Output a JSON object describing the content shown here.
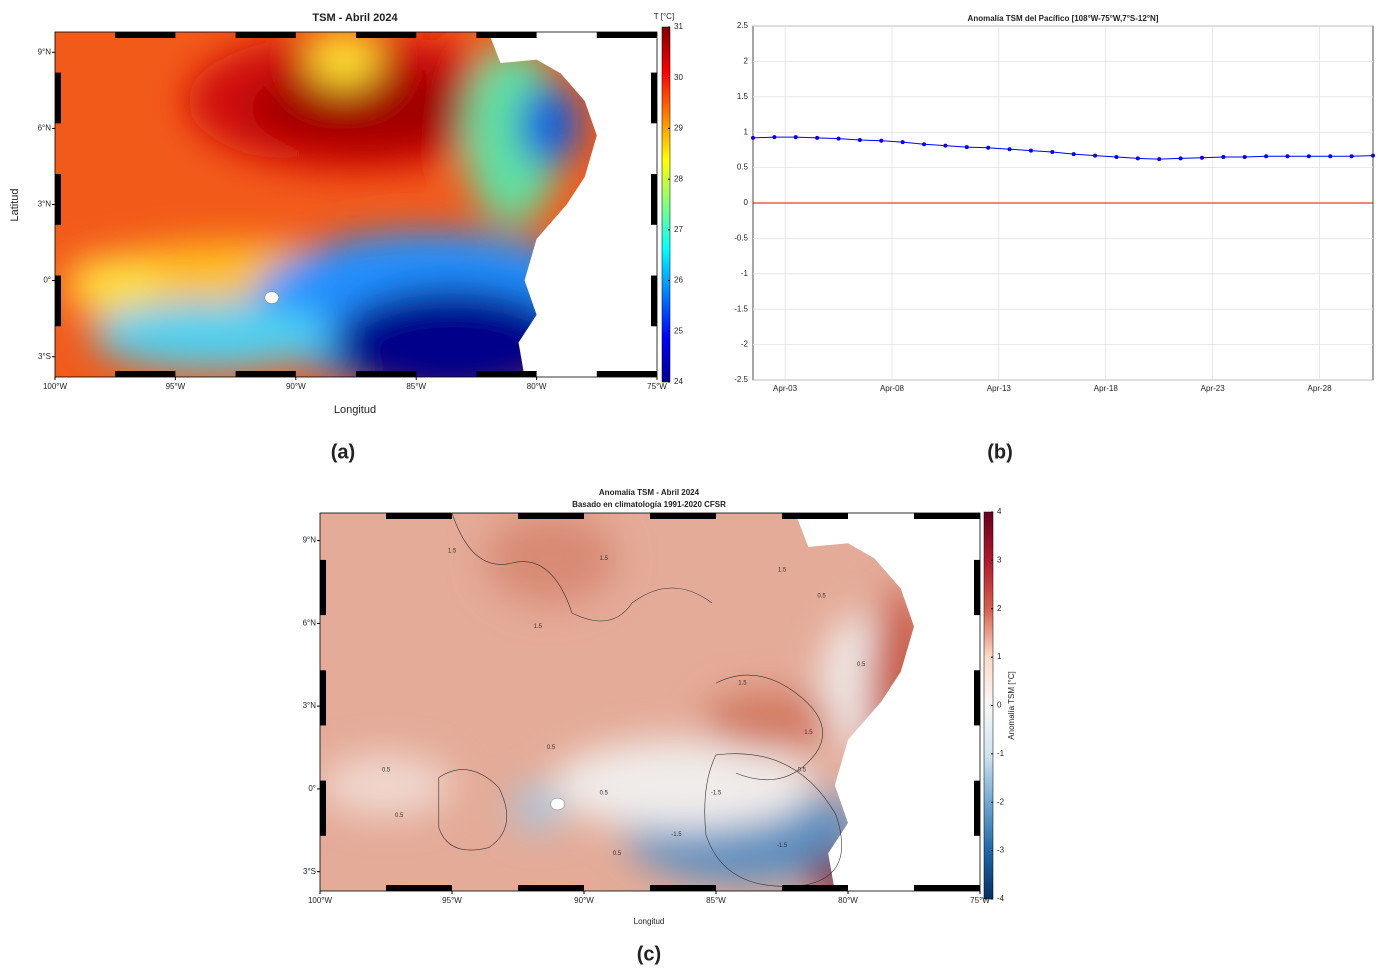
{
  "chart_data": [
    {
      "type": "map",
      "panel_label": "(a)",
      "title": "TSM - Abril 2024",
      "xlabel": "Longitud",
      "ylabel": "Latitud",
      "xlim": [
        -100,
        -75
      ],
      "ylim": [
        -3.8,
        9.8
      ],
      "xticks": [
        {
          "value": -100,
          "label": "100°W"
        },
        {
          "value": -95,
          "label": "95°W"
        },
        {
          "value": -90,
          "label": "90°W"
        },
        {
          "value": -85,
          "label": "85°W"
        },
        {
          "value": -80,
          "label": "80°W"
        },
        {
          "value": -75,
          "label": "75°W"
        }
      ],
      "yticks": [
        {
          "value": -3,
          "label": "3°S"
        },
        {
          "value": 0,
          "label": "0°"
        },
        {
          "value": 3,
          "label": "3°N"
        },
        {
          "value": 6,
          "label": "6°N"
        },
        {
          "value": 9,
          "label": "9°N"
        }
      ],
      "colorbar": {
        "label": "T [°C]",
        "lim": [
          24,
          31
        ],
        "ticks": [
          24,
          25,
          26,
          27,
          28,
          29,
          30,
          31
        ],
        "colors": [
          "#00008f",
          "#0000ff",
          "#0080ff",
          "#00ffff",
          "#80ff80",
          "#ffff00",
          "#ff8000",
          "#ff0000",
          "#800000"
        ]
      }
    },
    {
      "type": "line",
      "panel_label": "(b)",
      "title": "Anomalía TSM del Pacífico [108°W-75°W,7°S-12°N]",
      "x": [
        1.5,
        2.5,
        3.5,
        4.5,
        5.5,
        6.5,
        7.5,
        8.5,
        9.5,
        10.5,
        11.5,
        12.5,
        13.5,
        14.5,
        15.5,
        16.5,
        17.5,
        18.5,
        19.5,
        20.5,
        21.5,
        22.5,
        23.5,
        24.5,
        25.5,
        26.5,
        27.5,
        28.5,
        29.5,
        30.5
      ],
      "series": [
        {
          "color": "#0000ff",
          "values": [
            0.92,
            0.93,
            0.93,
            0.92,
            0.91,
            0.89,
            0.88,
            0.86,
            0.83,
            0.81,
            0.79,
            0.78,
            0.76,
            0.74,
            0.72,
            0.69,
            0.67,
            0.65,
            0.63,
            0.62,
            0.63,
            0.64,
            0.65,
            0.65,
            0.66,
            0.66,
            0.66,
            0.66,
            0.66,
            0.67
          ]
        }
      ],
      "xlim": [
        1.5,
        30.5
      ],
      "xticks": [
        {
          "value": 3,
          "label": "Apr-03"
        },
        {
          "value": 8,
          "label": "Apr-08"
        },
        {
          "value": 13,
          "label": "Apr-13"
        },
        {
          "value": 18,
          "label": "Apr-18"
        },
        {
          "value": 23,
          "label": "Apr-23"
        },
        {
          "value": 28,
          "label": "Apr-28"
        }
      ],
      "ylim": [
        -2.5,
        2.5
      ],
      "yticks": [
        -2.5,
        -2,
        -1.5,
        -1,
        -0.5,
        0,
        0.5,
        1,
        1.5,
        2,
        2.5
      ],
      "grid": true,
      "reference_line": {
        "value": 0,
        "color": "#ff0000"
      }
    },
    {
      "type": "map",
      "panel_label": "(c)",
      "title": "Anomalía TSM - Abril 2024",
      "subtitle": "Basado en climatología 1991-2020 CFSR",
      "xlabel": "Longitud",
      "xlim": [
        -100,
        -75
      ],
      "ylim": [
        -3.7,
        10
      ],
      "xticks": [
        {
          "value": -100,
          "label": "100°W"
        },
        {
          "value": -95,
          "label": "95°W"
        },
        {
          "value": -90,
          "label": "90°W"
        },
        {
          "value": -85,
          "label": "85°W"
        },
        {
          "value": -80,
          "label": "80°W"
        },
        {
          "value": -75,
          "label": "75°W"
        }
      ],
      "yticks": [
        {
          "value": -3,
          "label": "3°S"
        },
        {
          "value": 0,
          "label": "0°"
        },
        {
          "value": 3,
          "label": "3°N"
        },
        {
          "value": 6,
          "label": "6°N"
        },
        {
          "value": 9,
          "label": "9°N"
        }
      ],
      "colorbar": {
        "label": "Anomalía TSM [°C]",
        "lim": [
          -4,
          4
        ],
        "ticks": [
          -4,
          -3,
          -2,
          -1,
          0,
          1,
          2,
          3,
          4
        ],
        "colors": [
          "#053061",
          "#2166ac",
          "#6fa8d0",
          "#d1e5f0",
          "#f7f7f7",
          "#fddbc7",
          "#d6604d",
          "#b2182b",
          "#67001f"
        ]
      },
      "contour_labels": [
        1.5,
        1.5,
        1.5,
        1.5,
        0.5,
        0.5,
        1.5,
        1.5,
        0.5,
        0.5,
        0.5,
        0.5,
        0.5,
        -1.5,
        -1.5,
        -1.5,
        0.5
      ]
    }
  ]
}
